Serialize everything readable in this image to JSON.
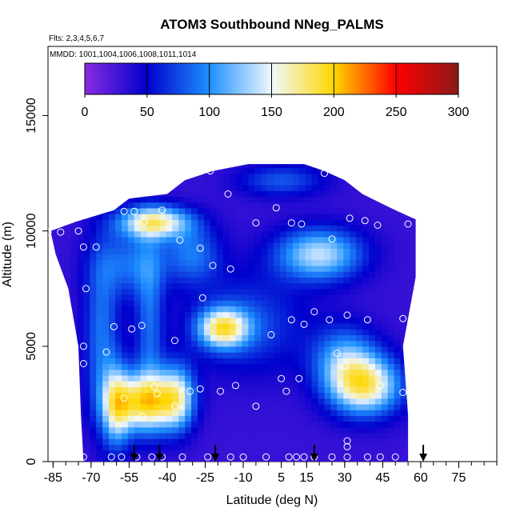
{
  "chart_data": {
    "type": "heatmap",
    "title": "ATOM3 Southbound NNeg_PALMS",
    "flights_label": "Flts: 2,3,4,5,6,7",
    "mmdd_label": "MMDD: 1001,1004,1006,1008,1011,1014",
    "xlabel": "Latitude (deg N)",
    "ylabel": "Altitude (m)",
    "xlim": [
      -87,
      90
    ],
    "ylim": [
      0,
      18000
    ],
    "x_ticks": [
      -85,
      -70,
      -55,
      -40,
      -25,
      -10,
      5,
      15,
      30,
      45,
      60,
      75
    ],
    "x_minor_step": 5,
    "y_ticks": [
      0,
      5000,
      10000,
      15000
    ],
    "colorbar": {
      "min": 0,
      "max": 300,
      "ticks": [
        0,
        50,
        100,
        150,
        200,
        250,
        300
      ],
      "colors": [
        "#8a2be2",
        "#0000cd",
        "#1e90ff",
        "#f0f8ff",
        "#ffd700",
        "#ff0000",
        "#8b1a1a"
      ]
    },
    "footprint": [
      [
        -86,
        10000
      ],
      [
        -76,
        10400
      ],
      [
        -61,
        10900
      ],
      [
        -55,
        11400
      ],
      [
        -40,
        11600
      ],
      [
        -33,
        12200
      ],
      [
        -22,
        12600
      ],
      [
        -8,
        12900
      ],
      [
        14,
        12900
      ],
      [
        22,
        12600
      ],
      [
        30,
        12200
      ],
      [
        37,
        11600
      ],
      [
        48,
        11000
      ],
      [
        58,
        10500
      ],
      [
        58,
        8000
      ],
      [
        53,
        5000
      ],
      [
        55,
        2000
      ],
      [
        55,
        0
      ],
      [
        -73,
        0
      ],
      [
        -74,
        2000
      ],
      [
        -75,
        5000
      ],
      [
        -79,
        7500
      ],
      [
        -84,
        9000
      ]
    ],
    "field_background": 30,
    "field_blobs": [
      {
        "x": -49,
        "y": 2600,
        "sx": 9,
        "sy": 900,
        "v": 200
      },
      {
        "x": -60,
        "y": 2400,
        "sx": 4,
        "sy": 1300,
        "v": 130
      },
      {
        "x": -36,
        "y": 2800,
        "sx": 5,
        "sy": 1000,
        "v": 140
      },
      {
        "x": 38,
        "y": 3300,
        "sx": 10,
        "sy": 900,
        "v": 185
      },
      {
        "x": 30,
        "y": 4500,
        "sx": 9,
        "sy": 1000,
        "v": 110
      },
      {
        "x": -18,
        "y": 5800,
        "sx": 7,
        "sy": 600,
        "v": 175
      },
      {
        "x": -8,
        "y": 6000,
        "sx": 16,
        "sy": 1500,
        "v": 80
      },
      {
        "x": 20,
        "y": 9000,
        "sx": 12,
        "sy": 800,
        "v": 150
      },
      {
        "x": -45,
        "y": 10400,
        "sx": 10,
        "sy": 500,
        "v": 180
      },
      {
        "x": -55,
        "y": 8600,
        "sx": 10,
        "sy": 1000,
        "v": 90
      },
      {
        "x": -30,
        "y": 9000,
        "sx": 8,
        "sy": 900,
        "v": 95
      },
      {
        "x": 5,
        "y": 12200,
        "sx": 12,
        "sy": 500,
        "v": 85
      },
      {
        "x": -66,
        "y": 5500,
        "sx": 5,
        "sy": 2500,
        "v": 95
      },
      {
        "x": -47,
        "y": 6000,
        "sx": 4,
        "sy": 2500,
        "v": 90
      }
    ],
    "samples": [
      [
        -87,
        9950
      ],
      [
        -82,
        9950
      ],
      [
        -75,
        10000
      ],
      [
        -73,
        9300
      ],
      [
        -68,
        9300
      ],
      [
        -57,
        10850
      ],
      [
        -53,
        10850
      ],
      [
        -49,
        10400
      ],
      [
        -42,
        10900
      ],
      [
        -35,
        9600
      ],
      [
        -27,
        9250
      ],
      [
        -23,
        12600
      ],
      [
        -16,
        11600
      ],
      [
        -5,
        10350
      ],
      [
        3,
        11000
      ],
      [
        9,
        10350
      ],
      [
        13,
        10300
      ],
      [
        22,
        12500
      ],
      [
        25,
        9650
      ],
      [
        32,
        10550
      ],
      [
        38,
        10450
      ],
      [
        43,
        10250
      ],
      [
        55,
        10300
      ],
      [
        -72,
        7500
      ],
      [
        -22,
        8500
      ],
      [
        -15,
        8350
      ],
      [
        -26,
        7100
      ],
      [
        1,
        5500
      ],
      [
        9,
        6150
      ],
      [
        14,
        5950
      ],
      [
        18,
        6500
      ],
      [
        24,
        6150
      ],
      [
        31,
        6350
      ],
      [
        39,
        6150
      ],
      [
        53,
        6200
      ],
      [
        -61,
        5850
      ],
      [
        -54,
        5750
      ],
      [
        -50,
        5900
      ],
      [
        -37,
        5250
      ],
      [
        -73,
        5000
      ],
      [
        -73,
        4250
      ],
      [
        -64,
        4750
      ],
      [
        27,
        4700
      ],
      [
        30,
        4150
      ],
      [
        -57,
        2750
      ],
      [
        -45,
        3250
      ],
      [
        -44,
        2950
      ],
      [
        -37,
        2400
      ],
      [
        -31,
        3050
      ],
      [
        -27,
        3150
      ],
      [
        -19,
        3050
      ],
      [
        -13,
        3300
      ],
      [
        -5,
        2400
      ],
      [
        5,
        3600
      ],
      [
        7,
        3050
      ],
      [
        12,
        3600
      ],
      [
        44,
        3300
      ],
      [
        53,
        3000
      ],
      [
        -50,
        1950
      ],
      [
        31,
        900
      ],
      [
        31,
        650
      ],
      [
        -73,
        200
      ],
      [
        -62,
        200
      ],
      [
        -58,
        200
      ],
      [
        -52,
        200
      ],
      [
        -46,
        200
      ],
      [
        -42,
        200
      ],
      [
        -34,
        200
      ],
      [
        -24,
        200
      ],
      [
        -15,
        200
      ],
      [
        -10,
        200
      ],
      [
        -1,
        200
      ],
      [
        8,
        200
      ],
      [
        11,
        200
      ],
      [
        14,
        200
      ],
      [
        18,
        200
      ],
      [
        25,
        200
      ],
      [
        31,
        200
      ],
      [
        39,
        200
      ],
      [
        44,
        200
      ],
      [
        50,
        200
      ]
    ],
    "arrows_latitude": [
      -53,
      -43,
      -21,
      18,
      61
    ]
  }
}
